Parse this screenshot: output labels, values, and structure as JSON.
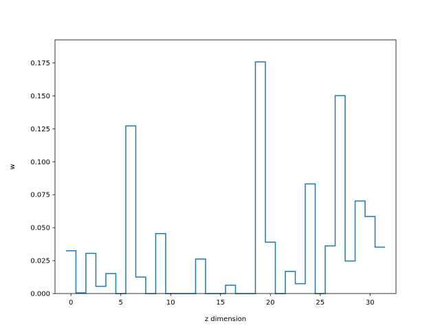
{
  "chart_data": {
    "type": "line",
    "style": "step-histogram",
    "title": "",
    "xlabel": "z dimension",
    "ylabel": "w",
    "xlim": [
      -1.6,
      32.6
    ],
    "ylim": [
      0,
      0.1925
    ],
    "xticks": [
      0,
      5,
      10,
      15,
      20,
      25,
      30
    ],
    "xtick_labels": [
      "0",
      "5",
      "10",
      "15",
      "20",
      "25",
      "30"
    ],
    "yticks": [
      0,
      0.025,
      0.05,
      0.075,
      0.1,
      0.125,
      0.15,
      0.175
    ],
    "ytick_labels": [
      "0.000",
      "0.025",
      "0.050",
      "0.075",
      "0.100",
      "0.125",
      "0.150",
      "0.175"
    ],
    "grid": false,
    "legend": "none",
    "series": [
      {
        "color": "#1f77b4",
        "x": [
          0,
          1,
          2,
          3,
          4,
          5,
          6,
          7,
          8,
          9,
          10,
          11,
          12,
          13,
          14,
          15,
          16,
          17,
          18,
          19,
          20,
          21,
          22,
          23,
          24,
          25,
          26,
          27,
          28,
          29,
          30,
          31
        ],
        "values": [
          0.0325,
          0.0005,
          0.0305,
          0.0055,
          0.0152,
          0.0,
          0.1272,
          0.0125,
          0.0,
          0.0455,
          0.0,
          0.0,
          0.0,
          0.0262,
          0.0,
          0.0,
          0.0063,
          0.0,
          0.0,
          0.1758,
          0.039,
          0.0,
          0.0168,
          0.0075,
          0.0832,
          0.0,
          0.0362,
          0.1502,
          0.0247,
          0.0702,
          0.0585,
          0.0352
        ]
      }
    ]
  }
}
